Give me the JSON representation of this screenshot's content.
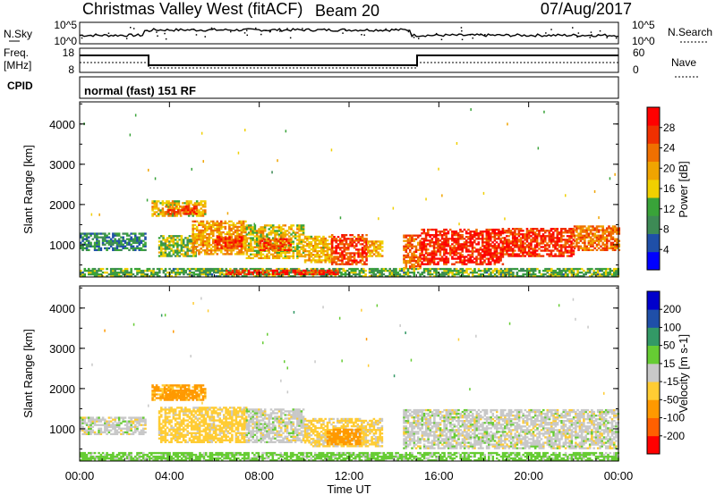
{
  "header": {
    "station": "Christmas Valley West (fitACF)",
    "beam": "Beam 20",
    "date": "07/Aug/2017"
  },
  "noise_panel": {
    "left_label": "N.Sky",
    "right_label": "N.Search",
    "left_ticks": [
      "10^5",
      "10^0"
    ],
    "right_ticks": [
      "10^5",
      "10^0"
    ]
  },
  "freq_panel": {
    "left_label_1": "Freq.",
    "left_label_2": "[MHz]",
    "right_label": "Nave",
    "left_ticks": [
      "18",
      "8"
    ],
    "right_ticks": [
      "60",
      "0"
    ]
  },
  "cpid": {
    "label": "CPID",
    "value": "normal (fast) 151 RF"
  },
  "colors": {
    "power": [
      "#0000ff",
      "#1f4fa8",
      "#3d8a55",
      "#39a339",
      "#f0d000",
      "#f0a400",
      "#f07000",
      "#f03000",
      "#ff0000"
    ],
    "velocity": [
      "#ff0000",
      "#ff6000",
      "#ff9900",
      "#ffcc33",
      "#c8c8c8",
      "#66cc33",
      "#339966",
      "#1f4fa8",
      "#0000cc"
    ]
  },
  "chart_data": [
    {
      "type": "heatmap",
      "name": "power",
      "ylabel": "Slant Range [km]",
      "yticks": [
        1000,
        2000,
        3000,
        4000
      ],
      "ylim": [
        200,
        4550
      ],
      "xlim": [
        0,
        24
      ],
      "colorbar_label": "Power [dB]",
      "colorbar_ticks": [
        "4",
        "8",
        "12",
        "16",
        "20",
        "24",
        "28"
      ],
      "colorbar_range": [
        0,
        32
      ],
      "regions": [
        {
          "t0": 0.0,
          "t1": 2.9,
          "r0": 850,
          "r1": 1300,
          "v": 9
        },
        {
          "t0": 3.2,
          "t1": 5.6,
          "r0": 1700,
          "r1": 2100,
          "v": 18
        },
        {
          "t0": 3.8,
          "t1": 5.2,
          "r0": 1750,
          "r1": 1950,
          "v": 26
        },
        {
          "t0": 3.5,
          "t1": 5.2,
          "r0": 700,
          "r1": 1200,
          "v": 14
        },
        {
          "t0": 5.0,
          "t1": 7.4,
          "r0": 750,
          "r1": 1600,
          "v": 20
        },
        {
          "t0": 6.0,
          "t1": 7.2,
          "r0": 900,
          "r1": 1200,
          "v": 27
        },
        {
          "t0": 7.4,
          "t1": 10.0,
          "r0": 650,
          "r1": 1500,
          "v": 17
        },
        {
          "t0": 8.0,
          "t1": 9.4,
          "r0": 850,
          "r1": 1150,
          "v": 25
        },
        {
          "t0": 10.0,
          "t1": 11.2,
          "r0": 550,
          "r1": 1200,
          "v": 19
        },
        {
          "t0": 11.2,
          "t1": 12.8,
          "r0": 500,
          "r1": 1250,
          "v": 26
        },
        {
          "t0": 12.8,
          "t1": 13.5,
          "r0": 700,
          "r1": 1100,
          "v": 19
        },
        {
          "t0": 14.4,
          "t1": 15.2,
          "r0": 400,
          "r1": 1250,
          "v": 24
        },
        {
          "t0": 15.2,
          "t1": 18.8,
          "r0": 500,
          "r1": 1400,
          "v": 28
        },
        {
          "t0": 18.8,
          "t1": 22.0,
          "r0": 700,
          "r1": 1400,
          "v": 27
        },
        {
          "t0": 22.0,
          "t1": 24.0,
          "r0": 850,
          "r1": 1450,
          "v": 23
        },
        {
          "t0": 0.0,
          "t1": 24.0,
          "r0": 200,
          "r1": 420,
          "v": 12
        },
        {
          "t0": 6.5,
          "t1": 11.5,
          "r0": 250,
          "r1": 380,
          "v": 28
        }
      ]
    },
    {
      "type": "heatmap",
      "name": "velocity",
      "ylabel": "Slant Range [km]",
      "yticks": [
        1000,
        2000,
        3000,
        4000
      ],
      "ylim": [
        200,
        4550
      ],
      "xlim": [
        0,
        24
      ],
      "xticks": [
        "00:00",
        "04:00",
        "08:00",
        "12:00",
        "16:00",
        "20:00",
        "00:00"
      ],
      "xlabel": "Time UT",
      "colorbar_label": "Velocity [m s-1]",
      "colorbar_ticks": [
        "-200",
        "-100",
        "-50",
        "-15",
        "15",
        "50",
        "100",
        "200"
      ],
      "colorbar_range": [
        -250,
        250
      ],
      "regions": [
        {
          "t0": 0.0,
          "t1": 2.9,
          "r0": 850,
          "r1": 1300,
          "v": 0
        },
        {
          "t0": 3.2,
          "t1": 5.6,
          "r0": 1700,
          "r1": 2100,
          "v": -60
        },
        {
          "t0": 3.8,
          "t1": 5.2,
          "r0": 1750,
          "r1": 1950,
          "v": -80
        },
        {
          "t0": 3.5,
          "t1": 7.4,
          "r0": 650,
          "r1": 1550,
          "v": -30
        },
        {
          "t0": 7.4,
          "t1": 10.0,
          "r0": 650,
          "r1": 1500,
          "v": 0
        },
        {
          "t0": 10.0,
          "t1": 13.5,
          "r0": 550,
          "r1": 1250,
          "v": -25
        },
        {
          "t0": 11.0,
          "t1": 12.5,
          "r0": 600,
          "r1": 1000,
          "v": -70
        },
        {
          "t0": 14.4,
          "t1": 24.0,
          "r0": 500,
          "r1": 1450,
          "v": 0
        },
        {
          "t0": 0.0,
          "t1": 24.0,
          "r0": 200,
          "r1": 420,
          "v": 30
        }
      ]
    }
  ]
}
